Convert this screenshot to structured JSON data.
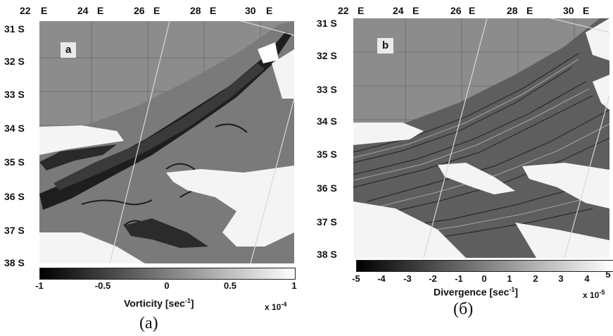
{
  "panels": {
    "a": {
      "tag": "a",
      "lon_labels": [
        "22",
        "E",
        "24",
        "E",
        "26",
        "E",
        "28",
        "E",
        "30",
        "E"
      ],
      "lat_labels": [
        "31",
        "S",
        "32",
        "S",
        "33",
        "S",
        "34",
        "S",
        "35",
        "S",
        "36",
        "S",
        "37",
        "S",
        "38",
        "S"
      ],
      "colorbar": {
        "ticks": [
          "-1",
          "-0.5",
          "0",
          "0.5",
          "1"
        ],
        "title": "Vorticity [sec",
        "title_exp": "-1",
        "title_end": "]",
        "scale_prefix": "x 10",
        "scale_exp": "-4"
      },
      "caption": "(a)"
    },
    "b": {
      "tag": "b",
      "lon_labels": [
        "22",
        "E",
        "24",
        "E",
        "26",
        "E",
        "28",
        "E",
        "30",
        "E"
      ],
      "lat_labels": [
        "31",
        "S",
        "32",
        "S",
        "33",
        "S",
        "34",
        "S",
        "35",
        "S",
        "36",
        "S",
        "37",
        "S",
        "38",
        "S"
      ],
      "colorbar": {
        "ticks": [
          "-5",
          "-4",
          "-3",
          "-2",
          "-1",
          "0",
          "1",
          "2",
          "3",
          "4",
          "5"
        ],
        "title": "Divergence [sec",
        "title_exp": "-1",
        "title_end": "]",
        "scale_prefix": "x 10",
        "scale_exp": "-5"
      },
      "caption": "(б)"
    }
  },
  "colors": {
    "land": "#8c8c8c",
    "cloud": "#f4f4f4",
    "dark_feature": "#1e1e1e",
    "grid": "#6f6f6f"
  }
}
